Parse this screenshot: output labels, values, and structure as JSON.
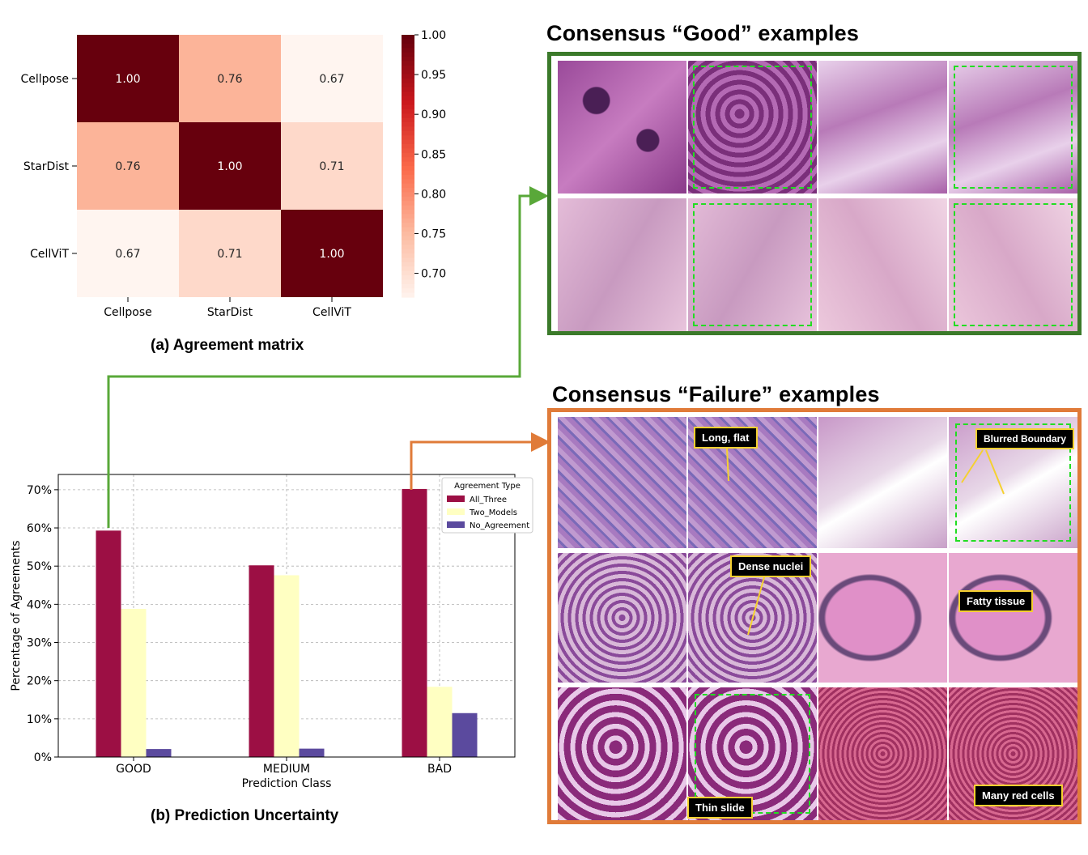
{
  "colors": {
    "good_frame": "#3b7a2a",
    "failure_frame": "#e07b39",
    "green_arrow": "#59a839",
    "orange_arrow": "#e07b39",
    "all_three": "#9c0f44",
    "two_models": "#ffffc2",
    "no_agreement": "#5b4a9e"
  },
  "captions": {
    "a": "(a)  Agreement matrix",
    "b": "(b)  Prediction Uncertainty"
  },
  "titles": {
    "good": "Consensus “Good” examples",
    "failure": "Consensus “Failure” examples"
  },
  "callouts": {
    "long_flat": "Long, flat",
    "blurred_boundary": "Blurred Boundary",
    "dense_nuclei": "Dense nuclei",
    "fatty_tissue": "Fatty tissue",
    "thin_slide": "Thin slide",
    "many_red_cells": "Many red cells"
  },
  "chart_data": [
    {
      "type": "heatmap",
      "title": "",
      "rows": [
        "Cellpose",
        "StarDist",
        "CellViT"
      ],
      "cols": [
        "Cellpose",
        "StarDist",
        "CellViT"
      ],
      "values": [
        [
          1.0,
          0.76,
          0.67
        ],
        [
          0.76,
          1.0,
          0.71
        ],
        [
          0.67,
          0.71,
          1.0
        ]
      ],
      "value_labels": [
        [
          "1.00",
          "0.76",
          "0.67"
        ],
        [
          "0.76",
          "1.00",
          "0.71"
        ],
        [
          "0.67",
          "0.71",
          "1.00"
        ]
      ],
      "colorbar": {
        "min": 0.67,
        "max": 1.0,
        "ticks": [
          "1.00",
          "0.95",
          "0.90",
          "0.85",
          "0.80",
          "0.75",
          "0.70"
        ],
        "tick_values": [
          1.0,
          0.95,
          0.9,
          0.85,
          0.8,
          0.75,
          0.7
        ],
        "colormap": "Reds"
      }
    },
    {
      "type": "bar",
      "title": "",
      "xlabel": "Prediction Class",
      "ylabel": "Percentage of Agreements",
      "categories": [
        "GOOD",
        "MEDIUM",
        "BAD"
      ],
      "ylim": [
        0,
        74
      ],
      "yticks": [
        0,
        10,
        20,
        30,
        40,
        50,
        60,
        70
      ],
      "ytick_labels": [
        "0%",
        "10%",
        "20%",
        "30%",
        "40%",
        "50%",
        "60%",
        "70%"
      ],
      "grid": true,
      "legend": {
        "title": "Agreement Type",
        "placement": "top-right"
      },
      "series": [
        {
          "name": "All_Three",
          "values": [
            59.3,
            50.2,
            70.2
          ]
        },
        {
          "name": "Two_Models",
          "values": [
            38.8,
            47.6,
            18.4
          ]
        },
        {
          "name": "No_Agreement",
          "values": [
            2.1,
            2.2,
            11.5
          ]
        }
      ]
    }
  ]
}
